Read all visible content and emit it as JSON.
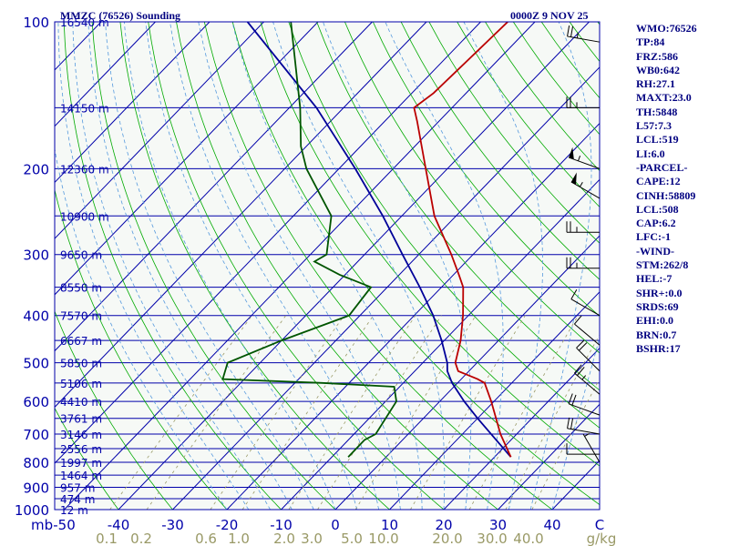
{
  "header": {
    "station": "MMZC (76526) Sounding",
    "time": "0000Z  9 NOV 25"
  },
  "indices": [
    "WMO:76526",
    "TP:84",
    "FRZ:586",
    "WB0:642",
    "RH:27.1",
    "MAXT:23.0",
    "TH:5848",
    "L57:7.3",
    "LCL:519",
    "LI:6.0",
    "-PARCEL-",
    "CAPE:12",
    "CINH:58809",
    "LCL:508",
    "CAP:6.2",
    "LFC:-1",
    "-WIND-",
    "STM:262/8",
    "HEL:-7",
    "SHR+:0.0",
    "SRDS:69",
    "EHI:0.0",
    "BRN:0.7",
    "BSHR:17"
  ],
  "colors": {
    "isobar": "#0000aa",
    "isotherm": "#0000aa",
    "dry_adiabat": "#00aa00",
    "moist_adiabat": "#5599dd",
    "mixing_ratio": "#999966",
    "temperature": "#bb0000",
    "dewpoint": "#005500",
    "parcel": "#000099",
    "labels": "#0000aa",
    "mixing_labels": "#999966",
    "panel": "#000080"
  },
  "chart_data": {
    "type": "skew-t",
    "pressure_ticks": [
      "100",
      "200",
      "300",
      "400",
      "500",
      "600",
      "700",
      "800",
      "900",
      "1000"
    ],
    "pressure_unit": "mb",
    "temperature_ticks": [
      "-50",
      "-40",
      "-30",
      "-20",
      "-10",
      "0",
      "10",
      "20",
      "30",
      "40"
    ],
    "temperature_unit": "C",
    "mixing_ratio_ticks": [
      "0.1",
      "0.2",
      "0.6",
      "1.0",
      "2.0",
      "3.0",
      "5.0",
      "10.0",
      "20.0",
      "30.0",
      "40.0"
    ],
    "mixing_ratio_unit": "g/kg",
    "height_labels": [
      {
        "p": 100,
        "label": "16540 m"
      },
      {
        "p": 150,
        "label": "14150 m"
      },
      {
        "p": 200,
        "label": "12360 m"
      },
      {
        "p": 250,
        "label": "10900 m"
      },
      {
        "p": 300,
        "label": "9650 m"
      },
      {
        "p": 350,
        "label": "8550 m"
      },
      {
        "p": 400,
        "label": "7570 m"
      },
      {
        "p": 450,
        "label": "6667 m"
      },
      {
        "p": 500,
        "label": "5850 m"
      },
      {
        "p": 550,
        "label": "5106 m"
      },
      {
        "p": 600,
        "label": "4410 m"
      },
      {
        "p": 650,
        "label": "3761 m"
      },
      {
        "p": 700,
        "label": "3146 m"
      },
      {
        "p": 750,
        "label": "2556 m"
      },
      {
        "p": 800,
        "label": "1997 m"
      },
      {
        "p": 850,
        "label": "1464 m"
      },
      {
        "p": 900,
        "label": "957 m"
      },
      {
        "p": 950,
        "label": "474 m"
      },
      {
        "p": 1000,
        "label": "12 m"
      }
    ],
    "temperature": [
      {
        "p": 780,
        "t": 23.0
      },
      {
        "p": 700,
        "t": 17.0
      },
      {
        "p": 600,
        "t": 9.5
      },
      {
        "p": 550,
        "t": 5.0
      },
      {
        "p": 540,
        "t": 3.0
      },
      {
        "p": 520,
        "t": -2.0
      },
      {
        "p": 500,
        "t": -4.0
      },
      {
        "p": 450,
        "t": -7.0
      },
      {
        "p": 400,
        "t": -11.0
      },
      {
        "p": 350,
        "t": -16.0
      },
      {
        "p": 330,
        "t": -19.0
      },
      {
        "p": 300,
        "t": -24.0
      },
      {
        "p": 250,
        "t": -34.0
      },
      {
        "p": 200,
        "t": -44.0
      },
      {
        "p": 160,
        "t": -54.0
      },
      {
        "p": 150,
        "t": -57.0
      },
      {
        "p": 140,
        "t": -56.0
      },
      {
        "p": 100,
        "t": -55.0
      }
    ],
    "dewpoint": [
      {
        "p": 780,
        "t": -7.0
      },
      {
        "p": 720,
        "t": -7.0
      },
      {
        "p": 700,
        "t": -6.0
      },
      {
        "p": 600,
        "t": -8.0
      },
      {
        "p": 560,
        "t": -11.0
      },
      {
        "p": 550,
        "t": -25.0
      },
      {
        "p": 540,
        "t": -44.0
      },
      {
        "p": 500,
        "t": -46.0
      },
      {
        "p": 450,
        "t": -40.0
      },
      {
        "p": 400,
        "t": -32.0
      },
      {
        "p": 350,
        "t": -33.0
      },
      {
        "p": 330,
        "t": -41.0
      },
      {
        "p": 310,
        "t": -48.0
      },
      {
        "p": 300,
        "t": -47.0
      },
      {
        "p": 250,
        "t": -53.0
      },
      {
        "p": 200,
        "t": -66.0
      },
      {
        "p": 180,
        "t": -71.0
      },
      {
        "p": 150,
        "t": -78.0
      },
      {
        "p": 100,
        "t": -95.0
      }
    ],
    "parcel": [
      {
        "p": 780,
        "t": 23.0
      },
      {
        "p": 650,
        "t": 10.0
      },
      {
        "p": 600,
        "t": 4.5
      },
      {
        "p": 550,
        "t": -1.0
      },
      {
        "p": 520,
        "t": -4.0
      },
      {
        "p": 500,
        "t": -5.5
      },
      {
        "p": 450,
        "t": -10.5
      },
      {
        "p": 400,
        "t": -16.5
      },
      {
        "p": 350,
        "t": -24.0
      },
      {
        "p": 300,
        "t": -33.0
      },
      {
        "p": 250,
        "t": -43.5
      },
      {
        "p": 200,
        "t": -57.0
      },
      {
        "p": 150,
        "t": -75.0
      },
      {
        "p": 100,
        "t": -103.0
      }
    ],
    "wind_barbs": [
      {
        "p": 110,
        "dir": 280,
        "kt": 25
      },
      {
        "p": 150,
        "dir": 270,
        "kt": 25
      },
      {
        "p": 200,
        "dir": 290,
        "kt": 55
      },
      {
        "p": 230,
        "dir": 300,
        "kt": 55
      },
      {
        "p": 270,
        "dir": 270,
        "kt": 25
      },
      {
        "p": 320,
        "dir": 270,
        "kt": 25
      },
      {
        "p": 400,
        "dir": 300,
        "kt": 10
      },
      {
        "p": 460,
        "dir": 310,
        "kt": 10
      },
      {
        "p": 520,
        "dir": 315,
        "kt": 20
      },
      {
        "p": 580,
        "dir": 310,
        "kt": 25
      },
      {
        "p": 640,
        "dir": 290,
        "kt": 20
      },
      {
        "p": 700,
        "dir": 280,
        "kt": 20
      },
      {
        "p": 770,
        "dir": 270,
        "kt": 10
      },
      {
        "p": 800,
        "dir": 330,
        "kt": 5
      }
    ]
  }
}
